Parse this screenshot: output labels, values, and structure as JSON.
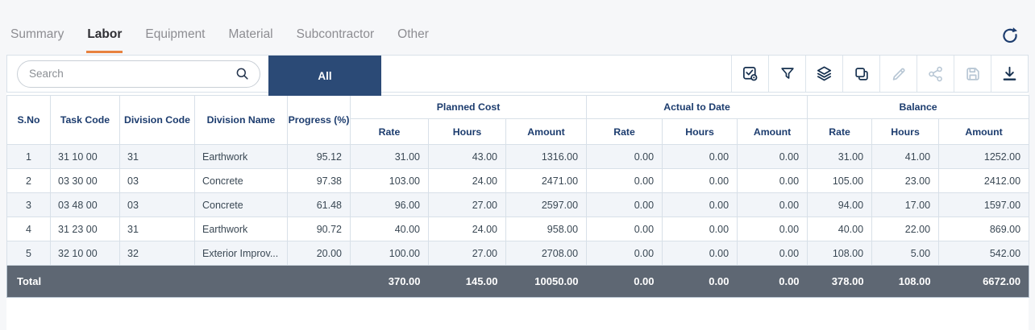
{
  "tabs": [
    {
      "label": "Summary",
      "active": false
    },
    {
      "label": "Labor",
      "active": true
    },
    {
      "label": "Equipment",
      "active": false
    },
    {
      "label": "Material",
      "active": false
    },
    {
      "label": "Subcontractor",
      "active": false
    },
    {
      "label": "Other",
      "active": false
    }
  ],
  "toolbar": {
    "search_placeholder": "Search",
    "search_value": "",
    "all_button_label": "All",
    "icons": [
      {
        "name": "select-check-icon",
        "enabled": true
      },
      {
        "name": "filter-icon",
        "enabled": true
      },
      {
        "name": "layers-icon",
        "enabled": true
      },
      {
        "name": "copy-icon",
        "enabled": true
      },
      {
        "name": "edit-icon",
        "enabled": false
      },
      {
        "name": "share-icon",
        "enabled": false
      },
      {
        "name": "save-icon",
        "enabled": false
      },
      {
        "name": "download-icon",
        "enabled": true
      }
    ]
  },
  "table": {
    "static_headers": [
      "S.No",
      "Task Code",
      "Division Code",
      "Division Name",
      "Progress (%)"
    ],
    "group_headers": [
      {
        "label": "Planned Cost",
        "sub": [
          "Rate",
          "Hours",
          "Amount"
        ]
      },
      {
        "label": "Actual to Date",
        "sub": [
          "Rate",
          "Hours",
          "Amount"
        ]
      },
      {
        "label": "Balance",
        "sub": [
          "Rate",
          "Hours",
          "Amount"
        ]
      }
    ],
    "rows": [
      {
        "sno": "1",
        "task_code": "31 10 00",
        "division_code": "31",
        "division_name": "Earthwork",
        "progress": "95.12",
        "planned": {
          "rate": "31.00",
          "hours": "43.00",
          "amount": "1316.00"
        },
        "actual": {
          "rate": "0.00",
          "hours": "0.00",
          "amount": "0.00"
        },
        "balance": {
          "rate": "31.00",
          "hours": "41.00",
          "amount": "1252.00"
        }
      },
      {
        "sno": "2",
        "task_code": "03 30 00",
        "division_code": "03",
        "division_name": "Concrete",
        "progress": "97.38",
        "planned": {
          "rate": "103.00",
          "hours": "24.00",
          "amount": "2471.00"
        },
        "actual": {
          "rate": "0.00",
          "hours": "0.00",
          "amount": "0.00"
        },
        "balance": {
          "rate": "105.00",
          "hours": "23.00",
          "amount": "2412.00"
        }
      },
      {
        "sno": "3",
        "task_code": "03 48 00",
        "division_code": "03",
        "division_name": "Concrete",
        "progress": "61.48",
        "planned": {
          "rate": "96.00",
          "hours": "27.00",
          "amount": "2597.00"
        },
        "actual": {
          "rate": "0.00",
          "hours": "0.00",
          "amount": "0.00"
        },
        "balance": {
          "rate": "94.00",
          "hours": "17.00",
          "amount": "1597.00"
        }
      },
      {
        "sno": "4",
        "task_code": "31 23 00",
        "division_code": "31",
        "division_name": "Earthwork",
        "progress": "90.72",
        "planned": {
          "rate": "40.00",
          "hours": "24.00",
          "amount": "958.00"
        },
        "actual": {
          "rate": "0.00",
          "hours": "0.00",
          "amount": "0.00"
        },
        "balance": {
          "rate": "40.00",
          "hours": "22.00",
          "amount": "869.00"
        }
      },
      {
        "sno": "5",
        "task_code": "32 10 00",
        "division_code": "32",
        "division_name": "Exterior Improv...",
        "progress": "20.00",
        "planned": {
          "rate": "100.00",
          "hours": "27.00",
          "amount": "2708.00"
        },
        "actual": {
          "rate": "0.00",
          "hours": "0.00",
          "amount": "0.00"
        },
        "balance": {
          "rate": "108.00",
          "hours": "5.00",
          "amount": "542.00"
        }
      }
    ],
    "total": {
      "label": "Total",
      "planned": {
        "rate": "370.00",
        "hours": "145.00",
        "amount": "10050.00"
      },
      "actual": {
        "rate": "0.00",
        "hours": "0.00",
        "amount": "0.00"
      },
      "balance": {
        "rate": "378.00",
        "hours": "108.00",
        "amount": "6672.00"
      }
    }
  },
  "colors": {
    "accent_orange": "#e8823f",
    "navy_button": "#2b4a76",
    "header_text": "#1c3c6e",
    "total_row_bg": "#5e6773",
    "zebra_row_bg": "#f2f5f9"
  }
}
